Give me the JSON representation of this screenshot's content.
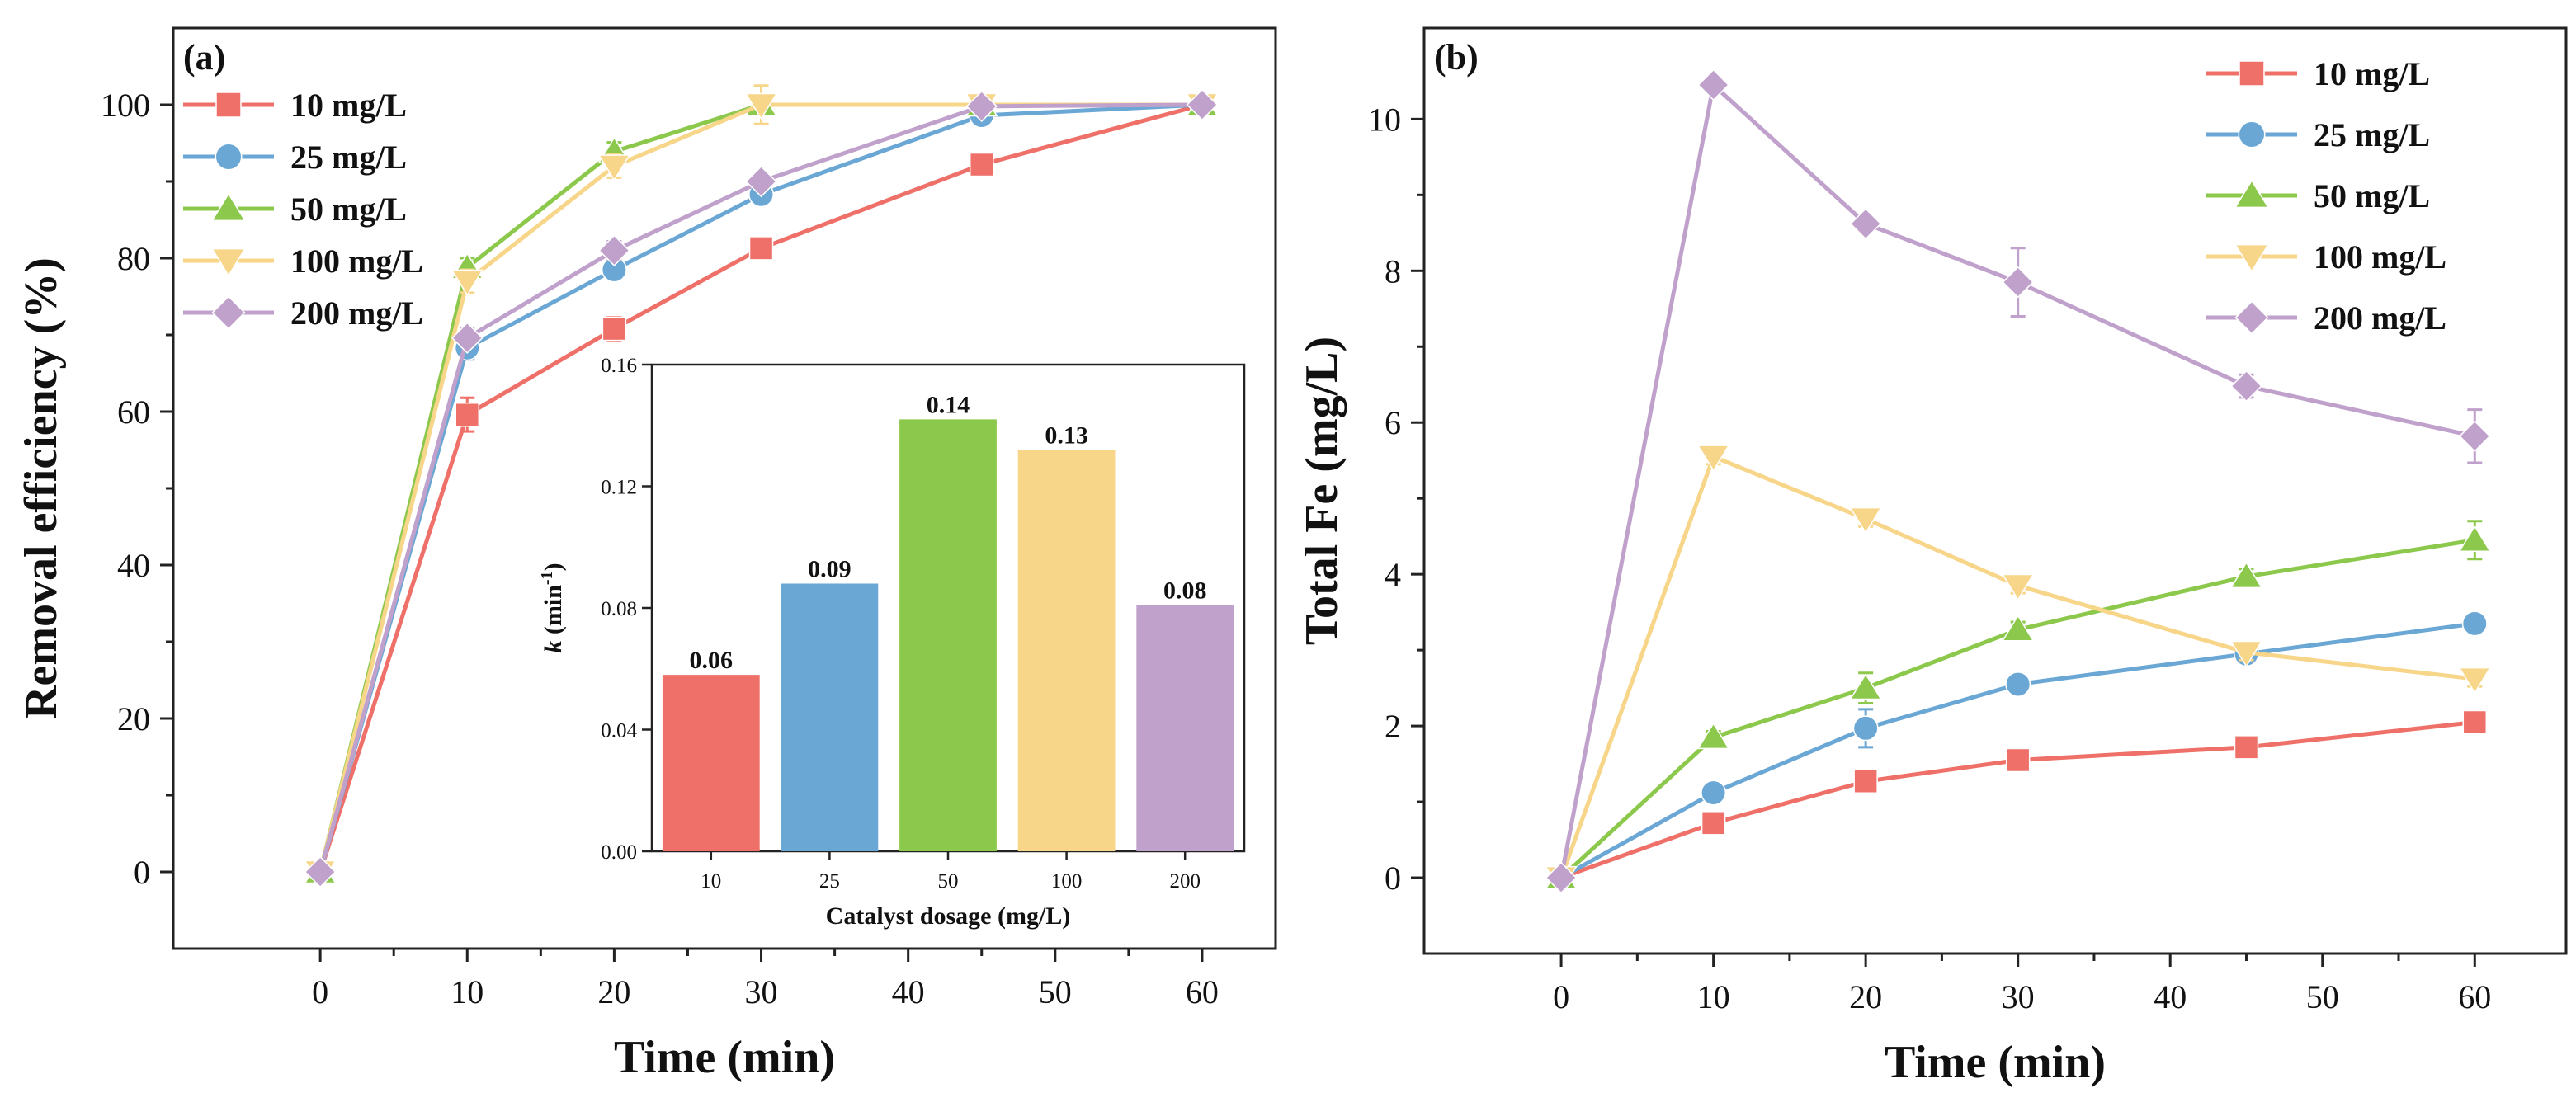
{
  "colors": {
    "10 mg/L": "#ee7068",
    "25 mg/L": "#6aa7d4",
    "50 mg/L": "#8cc84b",
    "100 mg/L": "#f7d589",
    "200 mg/L": "#c0a1cc"
  },
  "chart_data": [
    {
      "id": "panel-a",
      "type": "line",
      "panel_label": "(a)",
      "xlabel": "Time (min)",
      "ylabel": "Removal efficiency (%)",
      "xlim": [
        -10,
        65
      ],
      "ylim": [
        -10,
        110
      ],
      "xticks": [
        0,
        10,
        20,
        30,
        40,
        50,
        60
      ],
      "yticks": [
        0,
        20,
        40,
        60,
        80,
        100
      ],
      "legend_position": "top-left",
      "series": [
        {
          "name": "10 mg/L",
          "marker": "square",
          "x": [
            0,
            10,
            20,
            30,
            45,
            60
          ],
          "y": [
            0,
            59.6,
            70.8,
            81.3,
            92.2,
            100
          ],
          "err": [
            0,
            2.2,
            1.5,
            1.0,
            1.0,
            0.8
          ]
        },
        {
          "name": "25 mg/L",
          "marker": "circle",
          "x": [
            0,
            10,
            20,
            30,
            45,
            60
          ],
          "y": [
            0,
            68.3,
            78.5,
            88.3,
            98.6,
            100
          ],
          "err": [
            0,
            1.5,
            1.2,
            1.2,
            1.0,
            0.5
          ]
        },
        {
          "name": "50 mg/L",
          "marker": "triangle-up",
          "x": [
            0,
            10,
            20,
            30,
            45,
            60
          ],
          "y": [
            0,
            78.8,
            93.9,
            100,
            100,
            100
          ],
          "err": [
            0,
            1.2,
            1.2,
            1.0,
            0.5,
            0.5
          ]
        },
        {
          "name": "100 mg/L",
          "marker": "triangle-down",
          "x": [
            0,
            10,
            20,
            30,
            45,
            60
          ],
          "y": [
            0,
            77.0,
            92.0,
            100,
            100,
            100
          ],
          "err": [
            0,
            1.5,
            1.5,
            2.5,
            0.5,
            0.5
          ]
        },
        {
          "name": "200 mg/L",
          "marker": "diamond",
          "x": [
            0,
            10,
            20,
            30,
            45,
            60
          ],
          "y": [
            0,
            69.6,
            81.0,
            90.0,
            99.8,
            100
          ],
          "err": [
            0,
            1.2,
            1.2,
            1.0,
            0.5,
            0.5
          ]
        }
      ]
    },
    {
      "id": "inset",
      "type": "bar",
      "categories": [
        "10",
        "25",
        "50",
        "100",
        "200"
      ],
      "values": [
        0.058,
        0.088,
        0.142,
        0.132,
        0.081
      ],
      "value_labels": [
        "0.06",
        "0.09",
        "0.14",
        "0.13",
        "0.08"
      ],
      "xlabel": "Catalyst dosage (mg/L)",
      "ylabel_italic": "k",
      "ylabel_rest": " (min",
      "ylabel_sup": "-1",
      "ylabel_end": ")",
      "ylim": [
        0,
        0.16
      ],
      "yticks": [
        "0.00",
        "0.04",
        "0.08",
        "0.12",
        "0.16"
      ]
    },
    {
      "id": "panel-b",
      "type": "line",
      "panel_label": "(b)",
      "xlabel": "Time (min)",
      "ylabel": "Total Fe (mg/L)",
      "xlim": [
        -9,
        66
      ],
      "ylim": [
        -1,
        11.2
      ],
      "xticks": [
        0,
        10,
        20,
        30,
        40,
        50,
        60
      ],
      "yticks": [
        0,
        2,
        4,
        6,
        8,
        10
      ],
      "legend_position": "top-right",
      "series": [
        {
          "name": "10 mg/L",
          "marker": "square",
          "x": [
            0,
            10,
            20,
            30,
            45,
            60
          ],
          "y": [
            0,
            0.72,
            1.27,
            1.55,
            1.72,
            2.05
          ],
          "err": [
            0,
            0.05,
            0.08,
            0.08,
            0.08,
            0.1
          ]
        },
        {
          "name": "25 mg/L",
          "marker": "circle",
          "x": [
            0,
            10,
            20,
            30,
            45,
            60
          ],
          "y": [
            0,
            1.12,
            1.97,
            2.55,
            2.95,
            3.35
          ],
          "err": [
            0,
            0.1,
            0.25,
            0.12,
            0.1,
            0.1
          ]
        },
        {
          "name": "50 mg/L",
          "marker": "triangle-up",
          "x": [
            0,
            10,
            20,
            30,
            45,
            60
          ],
          "y": [
            0,
            1.85,
            2.5,
            3.27,
            3.97,
            4.45
          ],
          "err": [
            0,
            0.08,
            0.2,
            0.1,
            0.1,
            0.25
          ]
        },
        {
          "name": "100 mg/L",
          "marker": "triangle-down",
          "x": [
            0,
            10,
            20,
            30,
            45,
            60
          ],
          "y": [
            0,
            5.55,
            4.73,
            3.85,
            2.97,
            2.62
          ],
          "err": [
            0,
            0.1,
            0.1,
            0.1,
            0.1,
            0.1
          ]
        },
        {
          "name": "200 mg/L",
          "marker": "diamond",
          "x": [
            0,
            10,
            20,
            30,
            45,
            60
          ],
          "y": [
            0,
            10.45,
            8.62,
            7.85,
            6.48,
            5.82
          ],
          "err": [
            0,
            0.1,
            0.1,
            0.45,
            0.15,
            0.35
          ]
        }
      ]
    }
  ]
}
